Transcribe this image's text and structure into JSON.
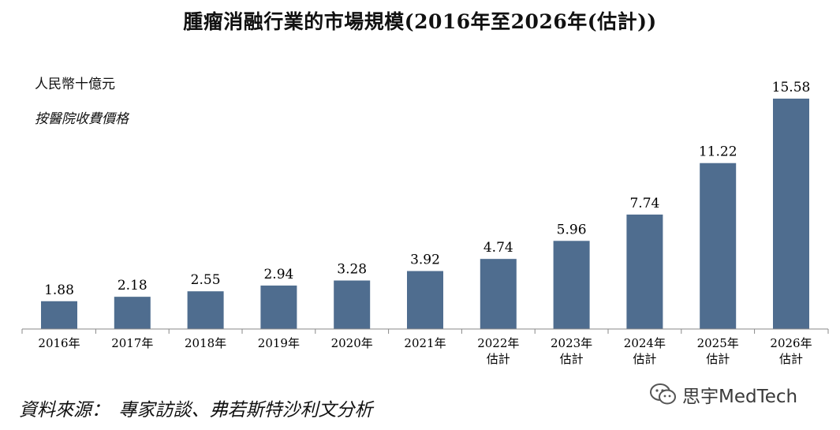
{
  "chart_data": {
    "type": "bar",
    "title": "腫瘤消融行業的市場規模(2016年至2026年(估計))",
    "unit_label": "人民幣十億元",
    "basis_label": "按醫院收費價格",
    "categories": [
      [
        "2016年"
      ],
      [
        "2017年"
      ],
      [
        "2018年"
      ],
      [
        "2019年"
      ],
      [
        "2020年"
      ],
      [
        "2021年"
      ],
      [
        "2022年",
        "估計"
      ],
      [
        "2023年",
        "估計"
      ],
      [
        "2024年",
        "估計"
      ],
      [
        "2025年",
        "估計"
      ],
      [
        "2026年",
        "估計"
      ]
    ],
    "series": [
      {
        "values": [
          1.88,
          2.18,
          2.55,
          2.94,
          3.28,
          3.92,
          4.74,
          5.96,
          7.74,
          11.22,
          15.58
        ],
        "color": "#4f6d8f"
      }
    ],
    "value_labels": [
      "1.88",
      "2.18",
      "2.55",
      "2.94",
      "3.28",
      "3.92",
      "4.74",
      "5.96",
      "7.74",
      "11.22",
      "15.58"
    ],
    "ylim": [
      0,
      15.58
    ],
    "grid": false,
    "legend": "none"
  },
  "footer": {
    "source": "資料來源：　專家訪談、弗若斯特沙利文分析",
    "watermark_text": "思宇MedTech",
    "watermark_icon": "wechat-icon"
  }
}
